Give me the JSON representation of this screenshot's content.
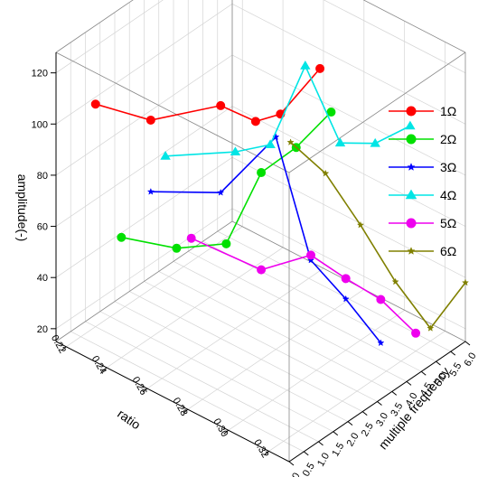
{
  "chart_data": {
    "type": "line",
    "title": "",
    "xlabel": "ratio",
    "ylabel": "multiple frequency",
    "zlabel": "amplitude(-)",
    "xlim": [
      0.215,
      0.33
    ],
    "ylim": [
      0,
      6
    ],
    "zlim": [
      15,
      128
    ],
    "x_ticks": [
      "0.22",
      "0.24",
      "0.26",
      "0.28",
      "0.30",
      "0.32"
    ],
    "y_ticks": [
      "0.0",
      "0.5",
      "1.0",
      "1.5",
      "2.0",
      "2.5",
      "3.0",
      "3.5",
      "4.0",
      "4.5",
      "5.0",
      "5.5",
      "6.0"
    ],
    "z_ticks": [
      "20",
      "40",
      "60",
      "80",
      "100",
      "120"
    ],
    "grid": true,
    "legend_position": "right",
    "series": [
      {
        "name": "1Ω",
        "color": "#ff0000",
        "marker": "circle",
        "points": [
          {
            "x": 0.22,
            "y": 1.0,
            "z": 102
          },
          {
            "x": 0.24,
            "y": 1.5,
            "z": 100
          },
          {
            "x": 0.26,
            "y": 2.5,
            "z": 106
          },
          {
            "x": 0.27,
            "y": 3.0,
            "z": 100
          },
          {
            "x": 0.275,
            "y": 3.5,
            "z": 101
          },
          {
            "x": 0.28,
            "y": 4.5,
            "z": 113
          }
        ]
      },
      {
        "name": "2Ω",
        "color": "#00e000",
        "marker": "circle",
        "points": [
          {
            "x": 0.24,
            "y": 0.5,
            "z": 62
          },
          {
            "x": 0.26,
            "y": 1.0,
            "z": 62
          },
          {
            "x": 0.27,
            "y": 2.0,
            "z": 60
          },
          {
            "x": 0.28,
            "y": 2.5,
            "z": 88
          },
          {
            "x": 0.29,
            "y": 3.0,
            "z": 98
          },
          {
            "x": 0.3,
            "y": 3.5,
            "z": 112
          }
        ]
      },
      {
        "name": "3Ω",
        "color": "#0000ff",
        "marker": "star",
        "points": [
          {
            "x": 0.24,
            "y": 1.5,
            "z": 72
          },
          {
            "x": 0.26,
            "y": 2.5,
            "z": 72
          },
          {
            "x": 0.28,
            "y": 3.0,
            "z": 98
          },
          {
            "x": 0.29,
            "y": 3.5,
            "z": 50
          },
          {
            "x": 0.3,
            "y": 4.0,
            "z": 35
          },
          {
            "x": 0.31,
            "y": 4.5,
            "z": 18
          }
        ]
      },
      {
        "name": "4Ω",
        "color": "#00e5e5",
        "marker": "triangle",
        "points": [
          {
            "x": 0.24,
            "y": 2.0,
            "z": 82
          },
          {
            "x": 0.26,
            "y": 3.0,
            "z": 84
          },
          {
            "x": 0.27,
            "y": 3.5,
            "z": 87
          },
          {
            "x": 0.28,
            "y": 4.0,
            "z": 118
          },
          {
            "x": 0.29,
            "y": 4.5,
            "z": 88
          },
          {
            "x": 0.3,
            "y": 5.0,
            "z": 88
          },
          {
            "x": 0.31,
            "y": 5.5,
            "z": 95
          }
        ]
      },
      {
        "name": "5Ω",
        "color": "#ee00ee",
        "marker": "circle",
        "points": [
          {
            "x": 0.26,
            "y": 1.5,
            "z": 62
          },
          {
            "x": 0.28,
            "y": 2.5,
            "z": 50
          },
          {
            "x": 0.29,
            "y": 3.5,
            "z": 52
          },
          {
            "x": 0.3,
            "y": 4.0,
            "z": 43
          },
          {
            "x": 0.31,
            "y": 4.5,
            "z": 35
          },
          {
            "x": 0.32,
            "y": 5.0,
            "z": 22
          }
        ]
      },
      {
        "name": "6Ω",
        "color": "#808000",
        "marker": "star",
        "points": [
          {
            "x": 0.28,
            "y": 3.5,
            "z": 92
          },
          {
            "x": 0.29,
            "y": 4.0,
            "z": 80
          },
          {
            "x": 0.3,
            "y": 4.5,
            "z": 60
          },
          {
            "x": 0.31,
            "y": 5.0,
            "z": 38
          },
          {
            "x": 0.32,
            "y": 5.5,
            "z": 20
          },
          {
            "x": 0.33,
            "y": 6.0,
            "z": 38
          }
        ]
      }
    ]
  }
}
